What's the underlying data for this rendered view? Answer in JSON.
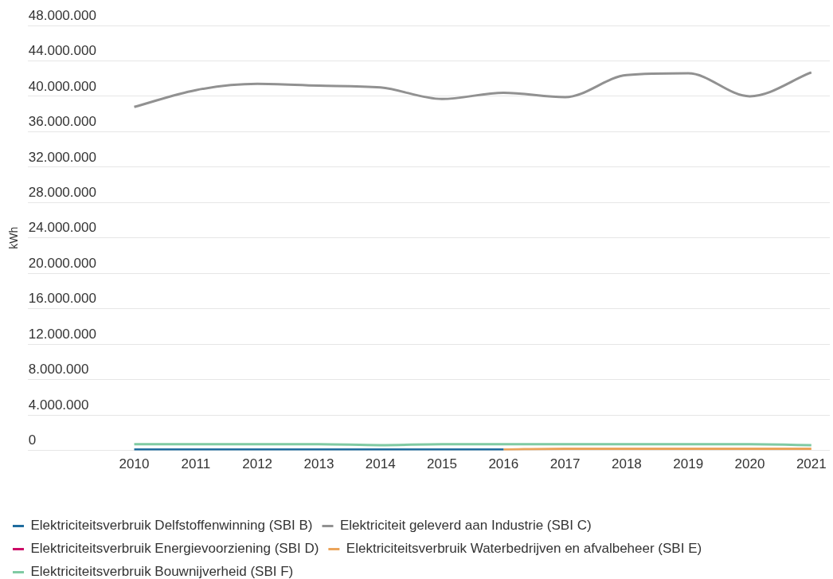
{
  "chart_data": {
    "type": "line",
    "ylabel": "kWh",
    "categories": [
      "2010",
      "2011",
      "2012",
      "2013",
      "2014",
      "2015",
      "2016",
      "2017",
      "2018",
      "2019",
      "2020",
      "2021"
    ],
    "series": [
      {
        "name": "Elektriciteitsverbruik Delfstoffenwinning (SBI B)",
        "color": "#1f6c9e",
        "values": [
          100000,
          100000,
          100000,
          100000,
          100000,
          100000,
          100000,
          null,
          null,
          null,
          null,
          null
        ]
      },
      {
        "name": "Elektriciteit geleverd aan Industrie (SBI C)",
        "color": "#919191",
        "values": [
          38800000,
          40700000,
          41400000,
          41200000,
          41000000,
          39700000,
          40400000,
          39900000,
          42400000,
          42600000,
          40000000,
          42700000
        ]
      },
      {
        "name": "Elektriciteitsverbruik Energievoorziening (SBI D)",
        "color": "#cc0a66",
        "values": [
          null,
          null,
          null,
          null,
          null,
          null,
          null,
          null,
          null,
          null,
          null,
          null
        ]
      },
      {
        "name": "Elektriciteitsverbruik Waterbedrijven en afvalbeheer (SBI E)",
        "color": "#eba45a",
        "values": [
          null,
          null,
          null,
          null,
          null,
          null,
          100000,
          200000,
          200000,
          200000,
          200000,
          200000
        ]
      },
      {
        "name": "Elektriciteitsverbruik Bouwnijverheid (SBI F)",
        "color": "#7fcaa3",
        "values": [
          700000,
          700000,
          700000,
          700000,
          600000,
          700000,
          700000,
          700000,
          700000,
          700000,
          700000,
          600000
        ]
      }
    ],
    "ylim": [
      0,
      48000000
    ],
    "yticks": [
      0,
      {
        "value": 4000000,
        "label": "4.000.000"
      },
      {
        "value": 8000000,
        "label": "8.000.000"
      },
      {
        "value": 12000000,
        "label": "12.000.000"
      },
      {
        "value": 16000000,
        "label": "16.000.000"
      },
      {
        "value": 20000000,
        "label": "20.000.000"
      },
      {
        "value": 24000000,
        "label": "24.000.000"
      },
      {
        "value": 28000000,
        "label": "28.000.000"
      },
      {
        "value": 32000000,
        "label": "32.000.000"
      },
      {
        "value": 36000000,
        "label": "36.000.000"
      },
      {
        "value": 40000000,
        "label": "40.000.000"
      },
      {
        "value": 44000000,
        "label": "44.000.000"
      },
      {
        "value": 48000000,
        "label": "48.000.000"
      }
    ],
    "grid": "y",
    "legend": "bottom left"
  }
}
